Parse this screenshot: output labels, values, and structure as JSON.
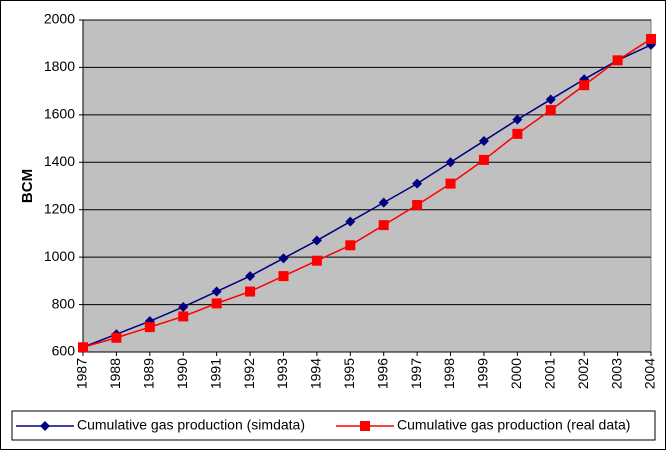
{
  "chart_data": {
    "type": "line",
    "ylabel": "BCM",
    "categories": [
      "1987",
      "1988",
      "1989",
      "1990",
      "1991",
      "1992",
      "1993",
      "1994",
      "1995",
      "1996",
      "1997",
      "1998",
      "1999",
      "2000",
      "2001",
      "2002",
      "2003",
      "2004"
    ],
    "series": [
      {
        "name": "Cumulative gas production (simdata)",
        "color": "#000080",
        "marker": "diamond",
        "values": [
          620,
          675,
          730,
          790,
          855,
          920,
          995,
          1070,
          1150,
          1230,
          1310,
          1400,
          1490,
          1580,
          1665,
          1750,
          1830,
          1895
        ]
      },
      {
        "name": "Cumulative gas production (real data)",
        "color": "#ff0000",
        "marker": "square",
        "values": [
          620,
          660,
          705,
          750,
          805,
          855,
          920,
          985,
          1050,
          1135,
          1220,
          1310,
          1410,
          1520,
          1620,
          1725,
          1830,
          1920
        ]
      }
    ],
    "ylim": [
      600,
      2000
    ],
    "yticks": [
      600,
      800,
      1000,
      1200,
      1400,
      1600,
      1800,
      2000
    ],
    "grid": true,
    "legend": "bottom"
  }
}
